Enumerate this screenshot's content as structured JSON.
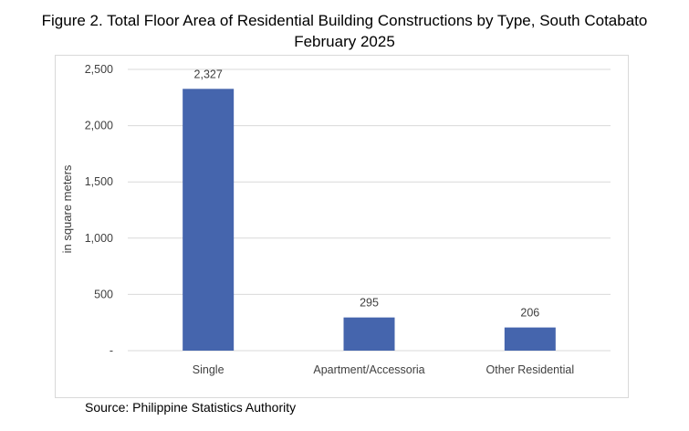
{
  "title_line1": "Figure 2.  Total Floor Area of Residential Building Constructions by Type, South Cotabato",
  "title_line2": "February 2025",
  "source": "Source: Philippine Statistics Authority",
  "chart_data": {
    "type": "bar",
    "categories": [
      "Single",
      "Apartment/Accessoria",
      "Other Residential"
    ],
    "values": [
      2327,
      295,
      206
    ],
    "data_labels": [
      "2,327",
      "295",
      "206"
    ],
    "ylabel": "in square meters",
    "ylim": [
      0,
      2500
    ],
    "yticks": [
      0,
      500,
      1000,
      1500,
      2000,
      2500
    ],
    "ytick_labels": [
      "-",
      "500",
      "1,000",
      "1,500",
      "2,000",
      "2,500"
    ],
    "grid": true,
    "bar_color": "#4565ad"
  }
}
